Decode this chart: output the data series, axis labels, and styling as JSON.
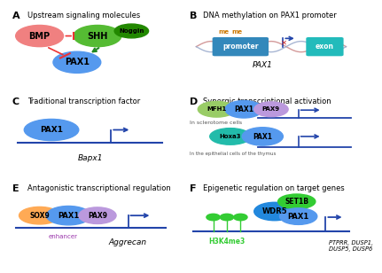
{
  "bg_color": "#ffffff",
  "panel_A": {
    "label": "A",
    "title": "Upstream signaling molecules",
    "BMP_color": "#f08080",
    "SHH_color": "#55bb33",
    "Noggin_color": "#228800",
    "PAX1_color": "#5599ee",
    "inhibit_color": "#ee3333",
    "activate_color": "#228822"
  },
  "panel_B": {
    "label": "B",
    "title": "DNA methylation on PAX1 promoter",
    "promoter_color": "#3388bb",
    "exon_color": "#22bbbb",
    "me_color": "#cc7700",
    "strand1_color": "#cc8888",
    "strand2_color": "#99aacc",
    "arrow_color": "#2244aa",
    "x_color": "#cc2222"
  },
  "panel_C": {
    "label": "C",
    "title": "Traditional transcription factor",
    "PAX1_color": "#5599ee",
    "gene_label": "Bapx1",
    "line_color": "#2244aa"
  },
  "panel_D": {
    "label": "D",
    "title": "Synergic transcriptional activation",
    "MFH1_color": "#99cc66",
    "PAX1_color": "#5599ee",
    "PAX9_color": "#bb99dd",
    "Hoxa3_color": "#22bbaa",
    "line_color": "#2244aa",
    "label1": "In sclerotome cells",
    "label2": "In the epithelial cells of the thymus"
  },
  "panel_E": {
    "label": "E",
    "title": "Antagonistic transcriptional regulation",
    "SOX9_color": "#ffaa55",
    "PAX1_color": "#5599ee",
    "PAX9_color": "#bb99dd",
    "gene_label": "Aggrecan",
    "enhancer_label": "enhancer",
    "line_color": "#2244aa"
  },
  "panel_F": {
    "label": "F",
    "title": "Epigenetic regulation on target genes",
    "WDR5_color": "#2288dd",
    "SET1B_color": "#33cc33",
    "PAX1_color": "#5599ee",
    "H3K4me3_color": "#33cc33",
    "gene_label": "PTPRR, DUSP1,\nDUSP5, DUSP6",
    "line_color": "#2244aa"
  }
}
